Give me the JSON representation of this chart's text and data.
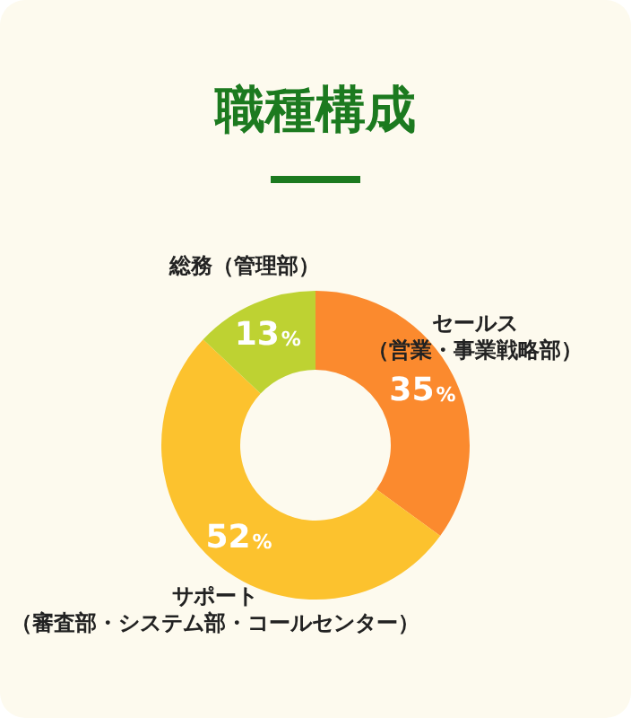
{
  "chart_data": {
    "type": "donut",
    "title": "職種構成",
    "categories": [
      "セールス（営業・事業戦略部）",
      "サポート（審査部・システム部・コールセンター）",
      "総務（管理部）"
    ],
    "values": [
      35,
      52,
      13
    ],
    "colors": [
      "#fb8a2e",
      "#fcc22e",
      "#bed232"
    ],
    "value_labels": [
      "35%",
      "52%",
      "13%"
    ],
    "legend": false
  }
}
